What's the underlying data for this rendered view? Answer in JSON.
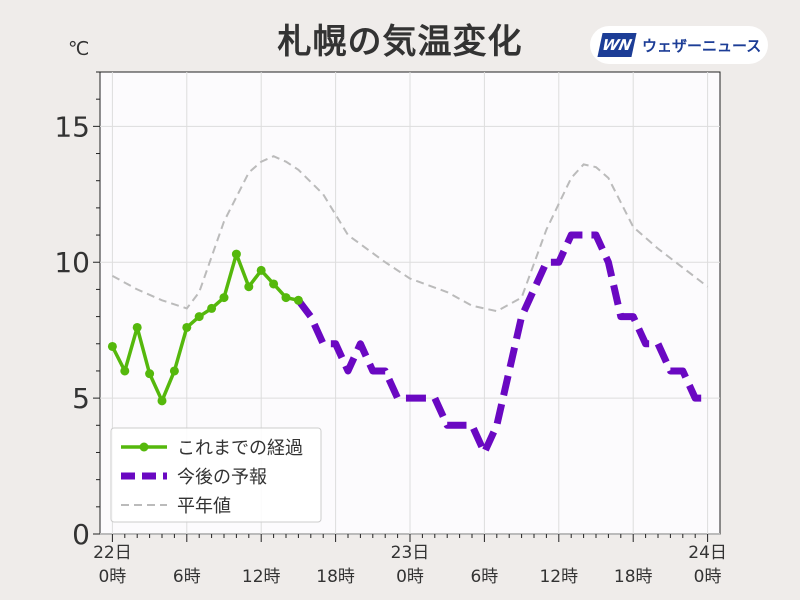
{
  "header": {
    "title": "札幌の気温変化",
    "unit": "℃",
    "logo_mark": "WN",
    "logo_text": "ウェザーニュース"
  },
  "colors": {
    "observed": "#55b80c",
    "forecast": "#6a08c2",
    "normal": "#bbbbbb",
    "plot_bg": "#fcfbfd",
    "page_bg": "#efecea"
  },
  "chart_data": {
    "type": "line",
    "title": "札幌の気温変化",
    "ylabel": "℃",
    "ylim": [
      0,
      17
    ],
    "xlim": [
      -1,
      49
    ],
    "yticks": [
      0,
      5,
      10,
      15
    ],
    "xticks": [
      {
        "x": 0,
        "top": "22日",
        "bottom": "0時"
      },
      {
        "x": 6,
        "top": "",
        "bottom": "6時"
      },
      {
        "x": 12,
        "top": "",
        "bottom": "12時"
      },
      {
        "x": 18,
        "top": "",
        "bottom": "18時"
      },
      {
        "x": 24,
        "top": "23日",
        "bottom": "0時"
      },
      {
        "x": 30,
        "top": "",
        "bottom": "6時"
      },
      {
        "x": 36,
        "top": "",
        "bottom": "12時"
      },
      {
        "x": 42,
        "top": "",
        "bottom": "18時"
      },
      {
        "x": 48,
        "top": "24日",
        "bottom": "0時"
      }
    ],
    "grid": true,
    "legend_position": "bottom-left",
    "series": [
      {
        "name": "これまでの経過",
        "style": "solid-markers",
        "x": [
          0,
          1,
          2,
          3,
          4,
          5,
          6,
          7,
          8,
          9,
          10,
          11,
          12,
          13,
          14,
          15
        ],
        "y": [
          6.9,
          6.0,
          7.6,
          5.9,
          4.9,
          6.0,
          7.6,
          8.0,
          8.3,
          8.7,
          10.3,
          9.1,
          9.7,
          9.2,
          8.7,
          8.6
        ]
      },
      {
        "name": "今後の予報",
        "style": "dashed-thick",
        "x": [
          15,
          16,
          17,
          18,
          19,
          20,
          21,
          22,
          23,
          24,
          25,
          26,
          27,
          28,
          29,
          30,
          31,
          32,
          33,
          34,
          35,
          36,
          37,
          38,
          39,
          40,
          41,
          42,
          43,
          44,
          45,
          46,
          47,
          48
        ],
        "y": [
          8.6,
          8.0,
          7.0,
          7.0,
          6.0,
          7.0,
          6.0,
          6.0,
          5.0,
          5.0,
          5.0,
          5.0,
          4.0,
          4.0,
          4.0,
          3.0,
          4.0,
          6.0,
          8.0,
          9.0,
          10.0,
          10.0,
          11.0,
          11.0,
          11.0,
          10.0,
          8.0,
          8.0,
          7.0,
          7.0,
          6.0,
          6.0,
          5.0,
          5.0
        ]
      },
      {
        "name": "平年値",
        "style": "dashed-thin",
        "x": [
          0,
          2,
          4,
          6,
          7,
          9,
          11,
          12,
          13,
          14,
          15,
          17,
          19,
          22,
          24,
          27,
          29,
          30,
          31,
          33,
          35,
          37,
          38,
          39,
          40,
          42,
          44,
          46,
          48
        ],
        "y": [
          9.5,
          9.0,
          8.6,
          8.3,
          8.9,
          11.5,
          13.3,
          13.7,
          13.9,
          13.7,
          13.4,
          12.5,
          11.0,
          10.0,
          9.4,
          8.9,
          8.4,
          8.3,
          8.2,
          8.7,
          11.2,
          13.1,
          13.6,
          13.5,
          13.1,
          11.3,
          10.5,
          9.8,
          9.1
        ]
      }
    ]
  }
}
